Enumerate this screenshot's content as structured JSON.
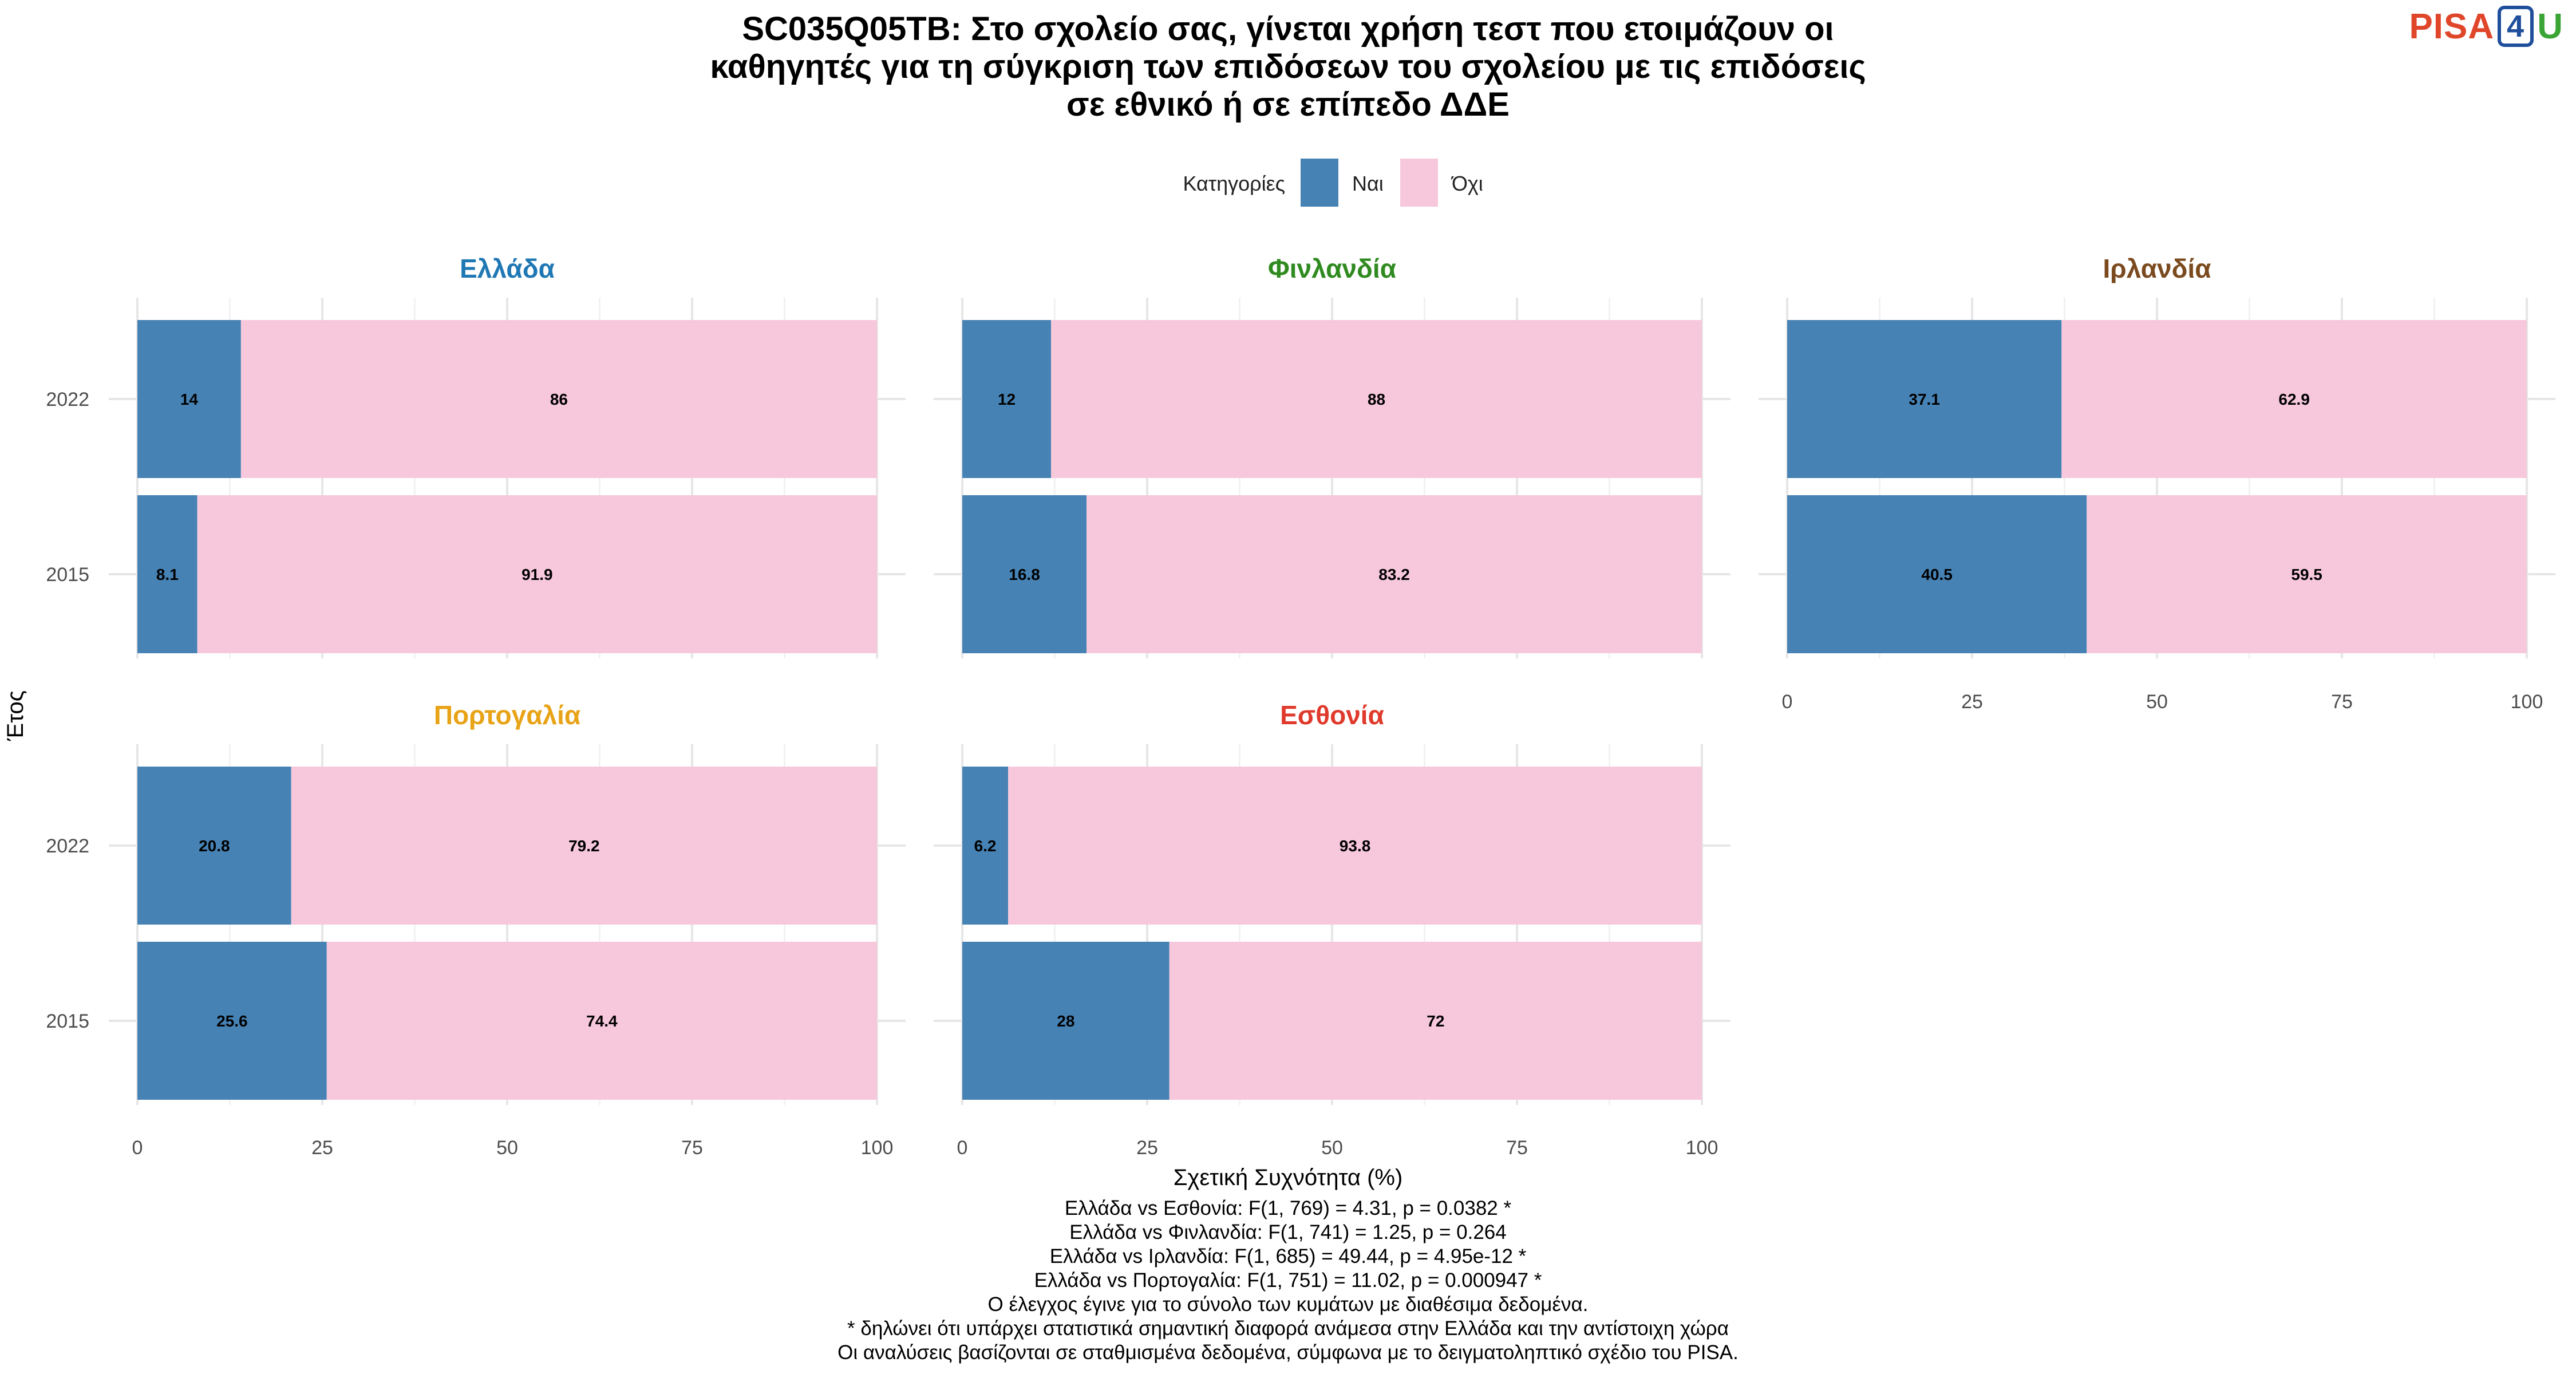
{
  "title_lines": [
    "SC035Q05TB: Στο σχολείο σας, γίνεται χρήση τεστ που ετοιμάζουν οι",
    "καθηγητές για τη σύγκριση των επιδόσεων του σχολείου με τις επιδόσεις",
    "σε εθνικό ή σε επίπεδο ΔΔΕ"
  ],
  "logo": {
    "pisa": "PISA",
    "four": "4",
    "u": "U"
  },
  "legend": {
    "title": "Κατηγορίες",
    "items": [
      {
        "label": "Ναι",
        "color": "#4682B4"
      },
      {
        "label": "Όχι",
        "color": "#F7C8DC"
      }
    ]
  },
  "ylabel": "Έτος",
  "xlabel": "Σχετική Συχνότητα (%)",
  "chart_data": {
    "type": "bar",
    "orientation": "horizontal",
    "stacked": true,
    "categories": [
      "2022",
      "2015"
    ],
    "xlim": [
      0,
      100
    ],
    "xticks": [
      0,
      25,
      50,
      75,
      100
    ],
    "grid": true,
    "legend_position": "top",
    "panels": [
      {
        "name": "Ελλάδα",
        "title_color": "#1f78b4",
        "series": [
          {
            "name": "Ναι",
            "values": [
              14,
              8.1
            ]
          },
          {
            "name": "Όχι",
            "values": [
              86,
              91.9
            ]
          }
        ],
        "labels": [
          [
            "14",
            "8.1"
          ],
          [
            "86",
            "91.9"
          ]
        ]
      },
      {
        "name": "Φινλανδία",
        "title_color": "#2f8a1f",
        "series": [
          {
            "name": "Ναι",
            "values": [
              12,
              16.8
            ]
          },
          {
            "name": "Όχι",
            "values": [
              88,
              83.2
            ]
          }
        ],
        "labels": [
          [
            "12",
            "16.8"
          ],
          [
            "88",
            "83.2"
          ]
        ]
      },
      {
        "name": "Ιρλανδία",
        "title_color": "#7b4a1e",
        "series": [
          {
            "name": "Ναι",
            "values": [
              37.1,
              40.5
            ]
          },
          {
            "name": "Όχι",
            "values": [
              62.9,
              59.5
            ]
          }
        ],
        "labels": [
          [
            "37.1",
            "40.5"
          ],
          [
            "62.9",
            "59.5"
          ]
        ]
      },
      {
        "name": "Πορτογαλία",
        "title_color": "#e8a317",
        "series": [
          {
            "name": "Ναι",
            "values": [
              20.8,
              25.6
            ]
          },
          {
            "name": "Όχι",
            "values": [
              79.2,
              74.4
            ]
          }
        ],
        "labels": [
          [
            "20.8",
            "25.6"
          ],
          [
            "79.2",
            "74.4"
          ]
        ]
      },
      {
        "name": "Εσθονία",
        "title_color": "#e03a2c",
        "series": [
          {
            "name": "Ναι",
            "values": [
              6.2,
              28
            ]
          },
          {
            "name": "Όχι",
            "values": [
              93.8,
              72
            ]
          }
        ],
        "labels": [
          [
            "6.2",
            "28"
          ],
          [
            "93.8",
            "72"
          ]
        ]
      }
    ]
  },
  "footnotes": [
    "Ελλάδα vs Εσθονία: F(1, 769) = 4.31, p = 0.0382 *",
    "Ελλάδα vs Φινλανδία: F(1, 741) = 1.25, p = 0.264",
    "Ελλάδα vs Ιρλανδία: F(1, 685) = 49.44, p = 4.95e-12 *",
    "Ελλάδα vs Πορτογαλία: F(1, 751) = 11.02, p = 0.000947 *",
    "Ο έλεγχος έγινε για το σύνολο των κυμάτων με διαθέσιμα δεδομένα.",
    "* δηλώνει ότι υπάρχει στατιστικά σημαντική διαφορά ανάμεσα στην Ελλάδα και την αντίστοιχη χώρα",
    "Οι αναλύσεις βασίζονται σε σταθμισμένα δεδομένα, σύμφωνα με το δειγματοληπτικό σχέδιο του PISA."
  ]
}
